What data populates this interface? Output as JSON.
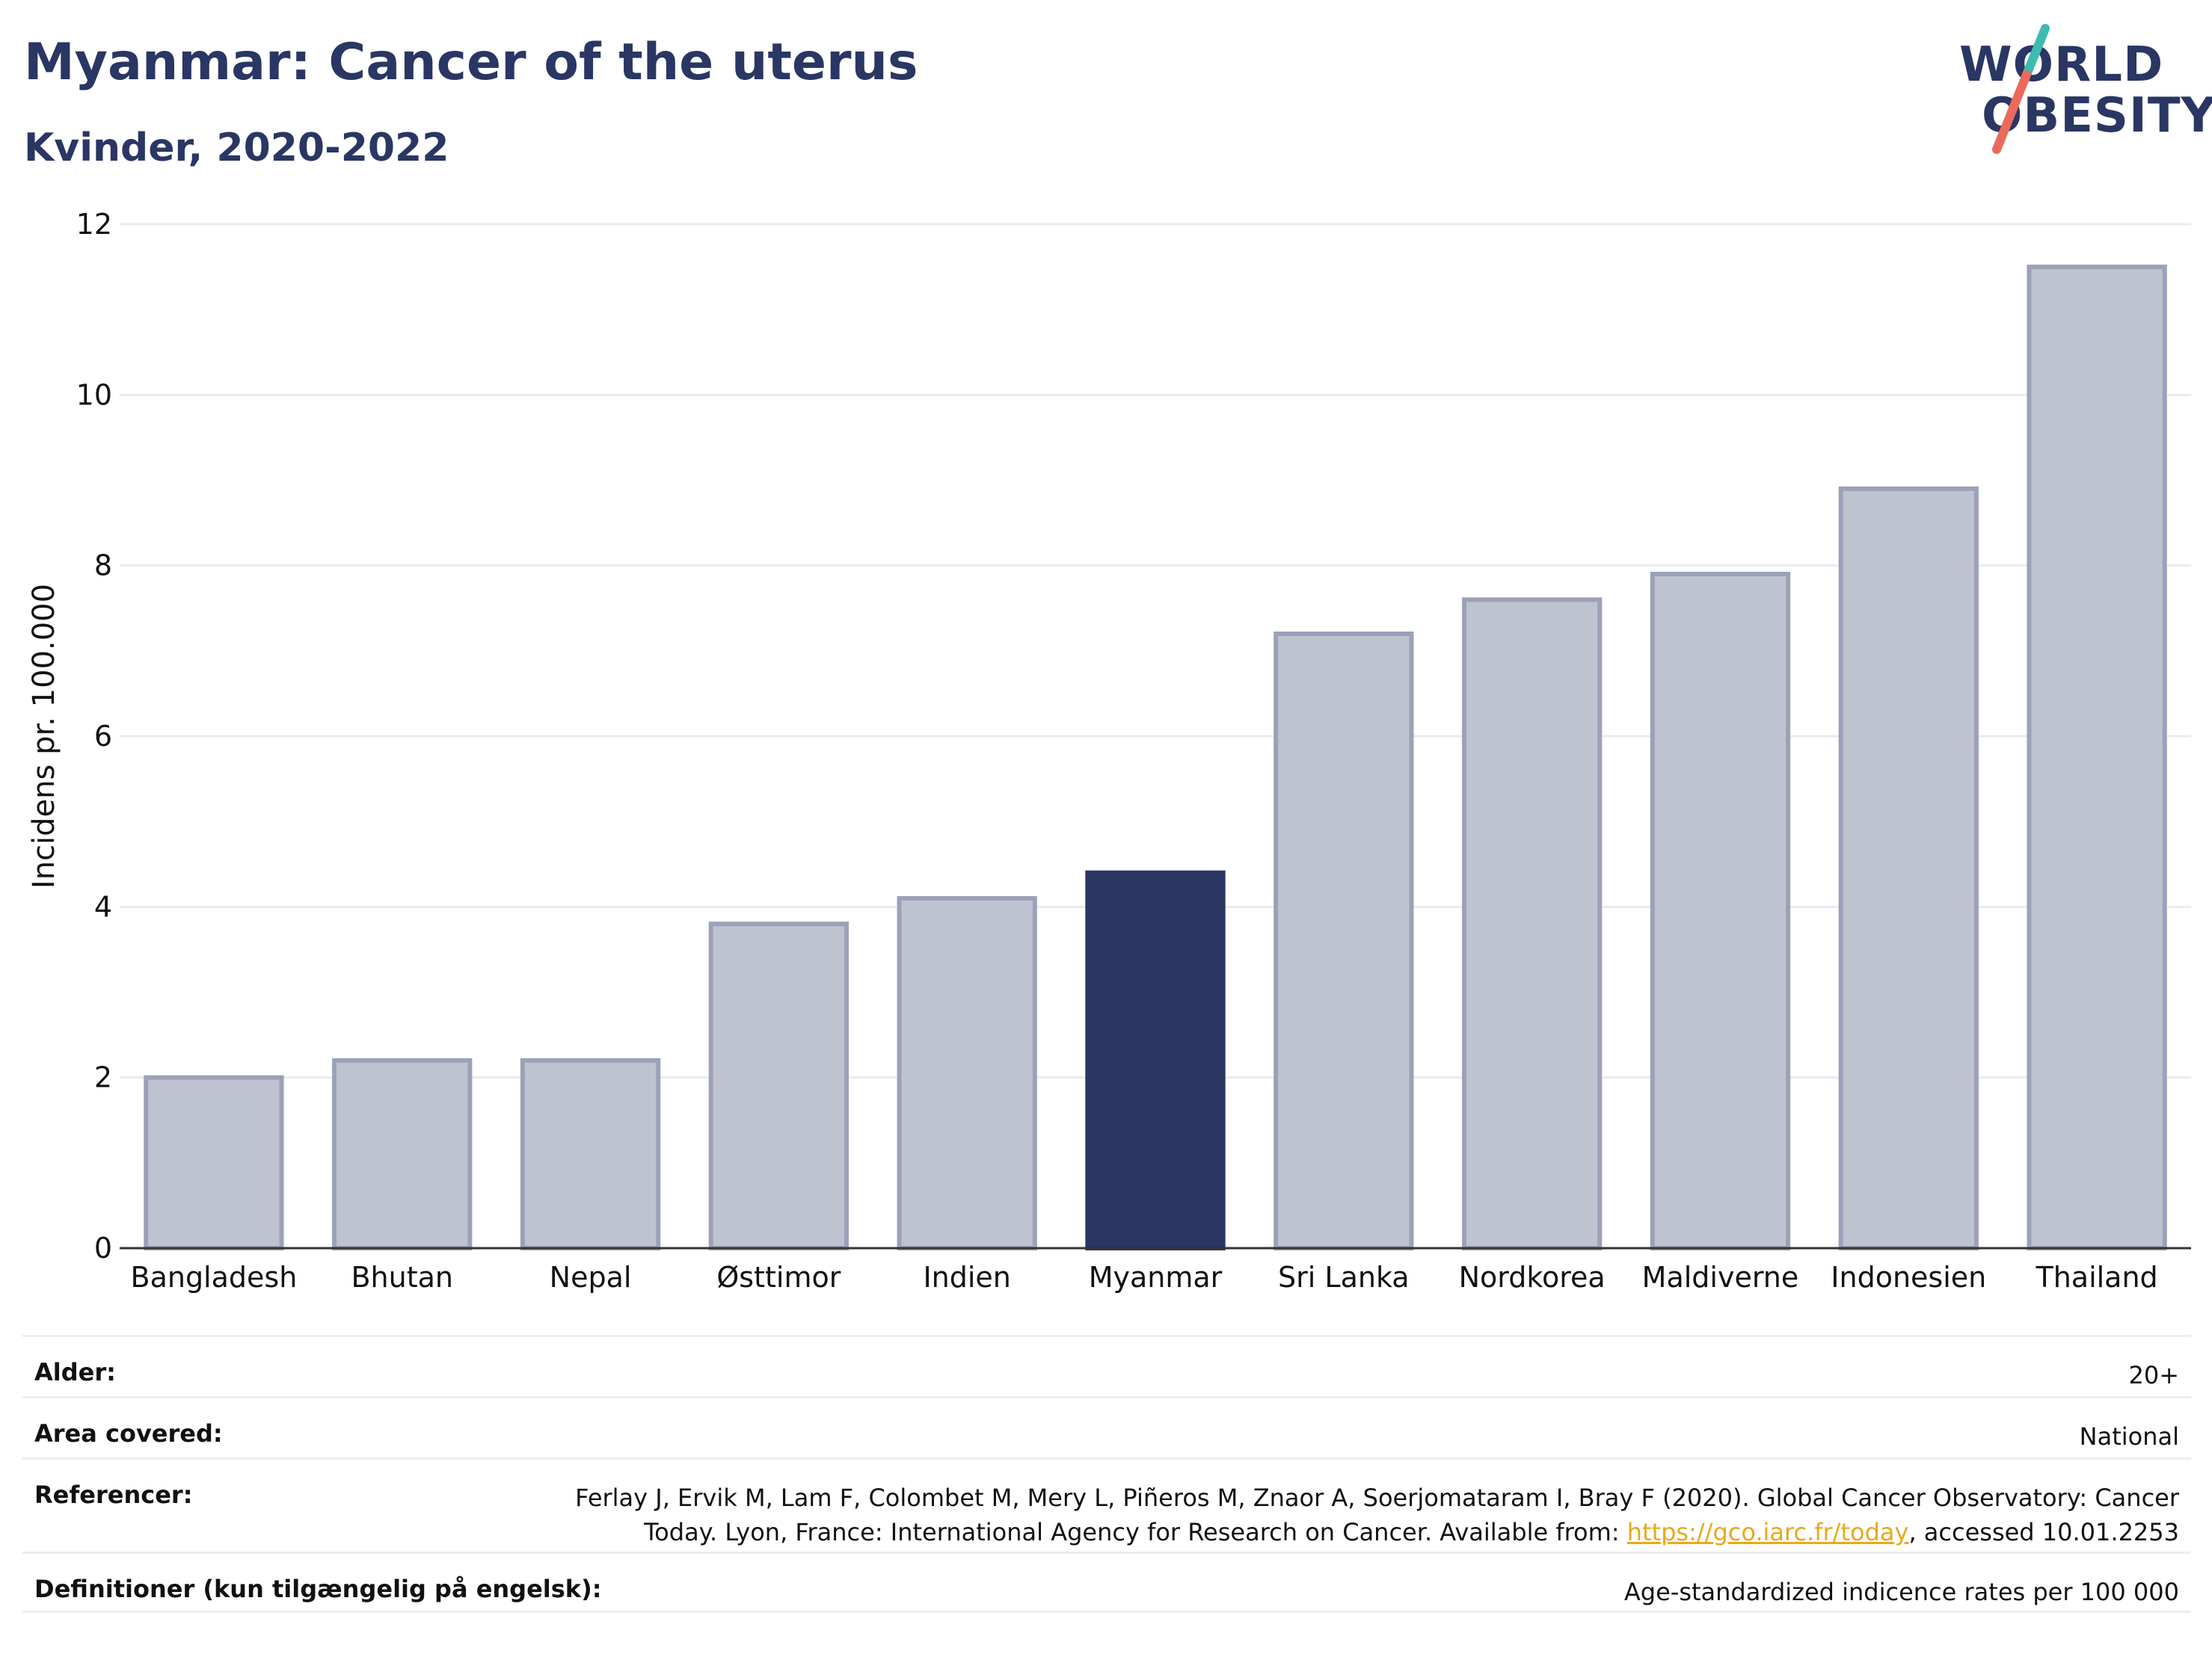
{
  "header": {
    "title": "Myanmar: Cancer of the uterus",
    "subtitle": "Kvinder, 2020-2022"
  },
  "logo": {
    "line1": "WORLD",
    "line2": "OBESITY"
  },
  "colors": {
    "highlight": "#2a3663",
    "bar_fill": "#bfc3d0",
    "bar_stroke": "#9ba1b8",
    "grid": "#e9ebf0",
    "logo_teal": "#3cbcb0",
    "logo_coral": "#ec6a5b",
    "link": "#e8a91d"
  },
  "chart_data": {
    "type": "bar",
    "categories": [
      "Bangladesh",
      "Bhutan",
      "Nepal",
      "Østtimor",
      "Indien",
      "Myanmar",
      "Sri Lanka",
      "Nordkorea",
      "Maldiverne",
      "Indonesien",
      "Thailand"
    ],
    "values": [
      2.0,
      2.2,
      2.2,
      3.8,
      4.1,
      4.4,
      7.2,
      7.6,
      7.9,
      8.9,
      11.5
    ],
    "highlight": "Myanmar",
    "ylabel": "Incidens pr. 100.000",
    "ylim": [
      0,
      12
    ],
    "yticks": [
      0,
      2,
      4,
      6,
      8,
      10,
      12
    ],
    "grid": true
  },
  "meta": {
    "age_label": "Alder:",
    "age_value": "20+",
    "area_label": "Area covered:",
    "area_value": "National",
    "ref_label": "Referencer:",
    "ref_text_1": "Ferlay J, Ervik M, Lam F, Colombet M, Mery L, Piñeros M, Znaor A, Soerjomataram I, Bray F (2020). Global Cancer Observatory: Cancer Today. Lyon, France: International Agency for Research on Cancer. Available from: ",
    "ref_link": "https://gco.iarc.fr/today",
    "ref_text_2": ", accessed 10.01.2253",
    "def_label": "Definitioner (kun tilgængelig på engelsk):",
    "def_value": "Age-standardized indicence rates per 100 000"
  }
}
